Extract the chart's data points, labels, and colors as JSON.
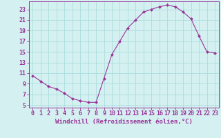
{
  "x": [
    0,
    1,
    2,
    3,
    4,
    5,
    6,
    7,
    8,
    9,
    10,
    11,
    12,
    13,
    14,
    15,
    16,
    17,
    18,
    19,
    20,
    21,
    22,
    23
  ],
  "y": [
    10.5,
    9.5,
    8.5,
    8.0,
    7.2,
    6.2,
    5.8,
    5.5,
    5.5,
    10.0,
    14.5,
    17.0,
    19.5,
    21.0,
    22.5,
    23.0,
    23.5,
    23.8,
    23.5,
    22.5,
    21.2,
    18.0,
    15.0,
    14.8
  ],
  "line_color": "#993399",
  "marker_color": "#993399",
  "bg_color": "#d4f0f0",
  "grid_color": "#aadddd",
  "xlabel": "Windchill (Refroidissement éolien,°C)",
  "ylabel_ticks": [
    5,
    7,
    9,
    11,
    13,
    15,
    17,
    19,
    21,
    23
  ],
  "xlim": [
    -0.5,
    23.5
  ],
  "ylim": [
    4.5,
    24.5
  ],
  "xticks": [
    0,
    1,
    2,
    3,
    4,
    5,
    6,
    7,
    8,
    9,
    10,
    11,
    12,
    13,
    14,
    15,
    16,
    17,
    18,
    19,
    20,
    21,
    22,
    23
  ],
  "label_fontsize": 6.5,
  "tick_fontsize": 6.0
}
